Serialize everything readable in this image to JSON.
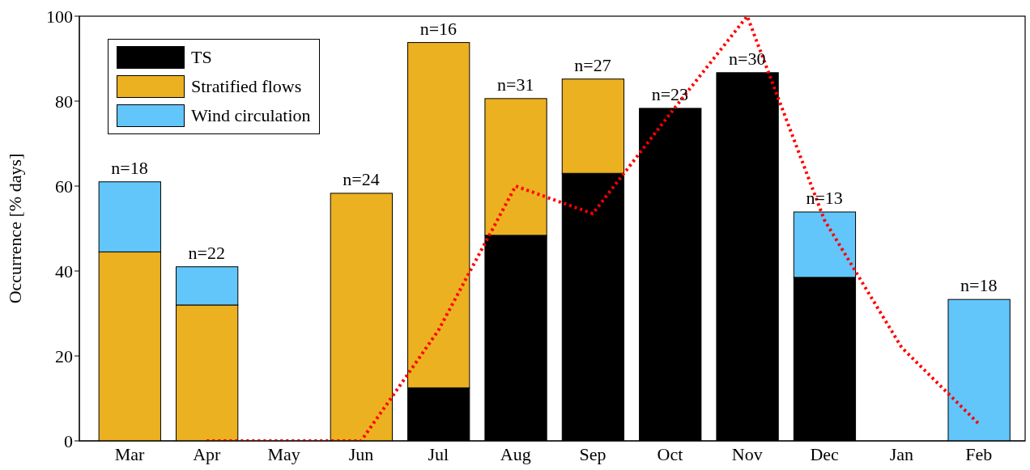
{
  "chart_data": {
    "type": "bar",
    "stacked": true,
    "ylabel": "Occurrence [% days]",
    "categories": [
      "Mar",
      "Apr",
      "May",
      "Jun",
      "Jul",
      "Aug",
      "Sep",
      "Oct",
      "Nov",
      "Dec",
      "Jan",
      "Feb"
    ],
    "ylim": [
      0,
      100
    ],
    "yticks": [
      0,
      20,
      40,
      60,
      80,
      100
    ],
    "grid": false,
    "legend": "top left",
    "series": [
      {
        "name": "TS",
        "color": "#000000",
        "values": [
          0,
          0,
          0,
          0,
          12.5,
          48.4,
          63,
          78.3,
          86.7,
          38.5,
          0,
          0
        ]
      },
      {
        "name": "Stratified flows",
        "color": "#ebb120",
        "values": [
          44.5,
          32,
          0,
          58.3,
          81.3,
          32.2,
          22.2,
          0,
          0,
          0,
          0,
          0
        ]
      },
      {
        "name": "Wind circulation",
        "color": "#62c6fb",
        "values": [
          16.5,
          9,
          0,
          0,
          0,
          0,
          0,
          0,
          0,
          15.4,
          0,
          33.3
        ]
      },
      {
        "type": "line",
        "color": "#ff0000",
        "line_style": "dotted",
        "marker": "none",
        "values": [
          null,
          0,
          0,
          0,
          26,
          60,
          53.5,
          77,
          100,
          52,
          22,
          4
        ]
      }
    ],
    "annotations": [
      {
        "text": "n=18",
        "x": "Mar",
        "y": 61
      },
      {
        "text": "n=22",
        "x": "Apr",
        "y": 41
      },
      {
        "text": "n=24",
        "x": "Jun",
        "y": 58.3
      },
      {
        "text": "n=16",
        "x": "Jul",
        "y": 93.8
      },
      {
        "text": "n=31",
        "x": "Aug",
        "y": 80.6
      },
      {
        "text": "n=27",
        "x": "Sep",
        "y": 85.2
      },
      {
        "text": "n=23",
        "x": "Oct",
        "y": 78.3
      },
      {
        "text": "n=30",
        "x": "Nov",
        "y": 86.7
      },
      {
        "text": "n=13",
        "x": "Dec",
        "y": 53.9
      },
      {
        "text": "n=18",
        "x": "Feb",
        "y": 33.3
      }
    ]
  }
}
